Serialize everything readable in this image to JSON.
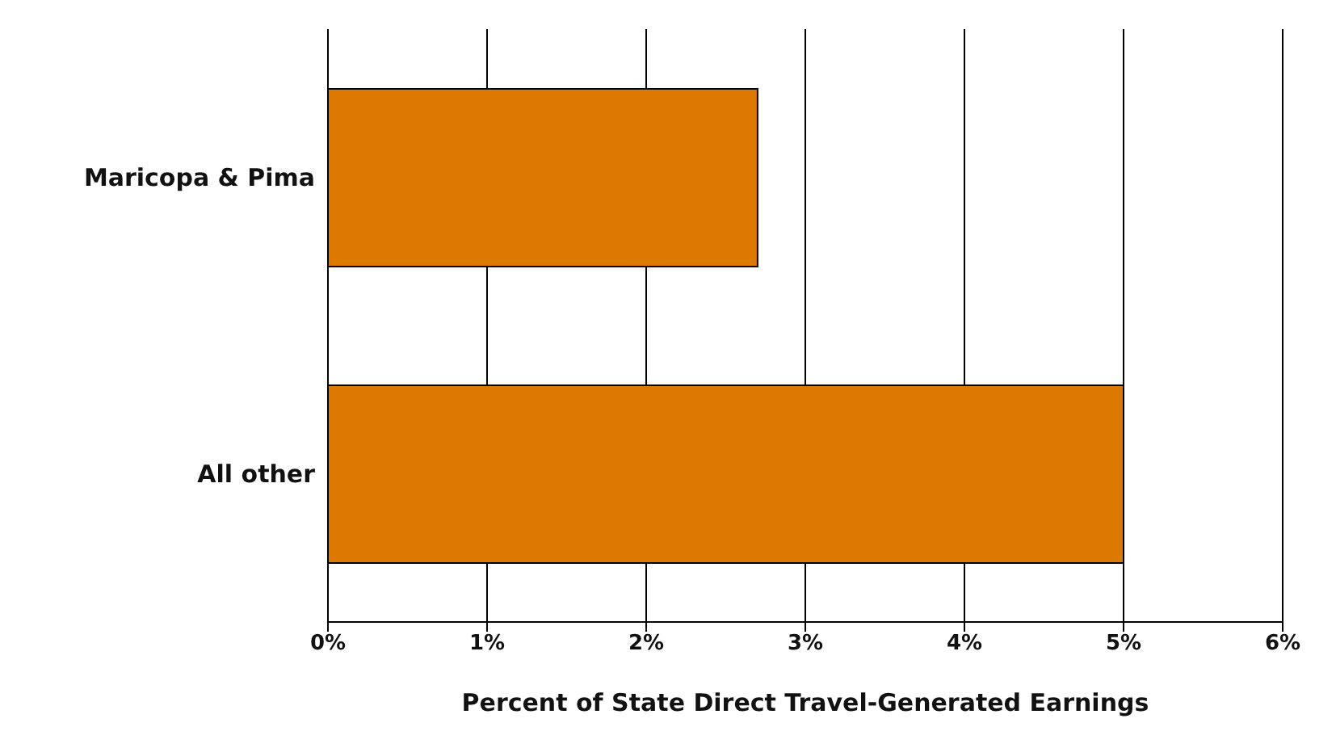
{
  "chart_data": {
    "type": "bar",
    "orientation": "horizontal",
    "categories": [
      "Maricopa & Pima",
      "All other"
    ],
    "values": [
      2.7,
      5.0
    ],
    "color": "#dd7800",
    "xlim": [
      0,
      6
    ],
    "xticks": [
      {
        "value": 0,
        "label": "0%"
      },
      {
        "value": 1,
        "label": "1%"
      },
      {
        "value": 2,
        "label": "2%"
      },
      {
        "value": 3,
        "label": "3%"
      },
      {
        "value": 4,
        "label": "4%"
      },
      {
        "value": 5,
        "label": "5%"
      },
      {
        "value": 6,
        "label": "6%"
      }
    ],
    "xlabel": "Percent of State Direct Travel-Generated Earnings",
    "grid": "x",
    "legend": false
  }
}
